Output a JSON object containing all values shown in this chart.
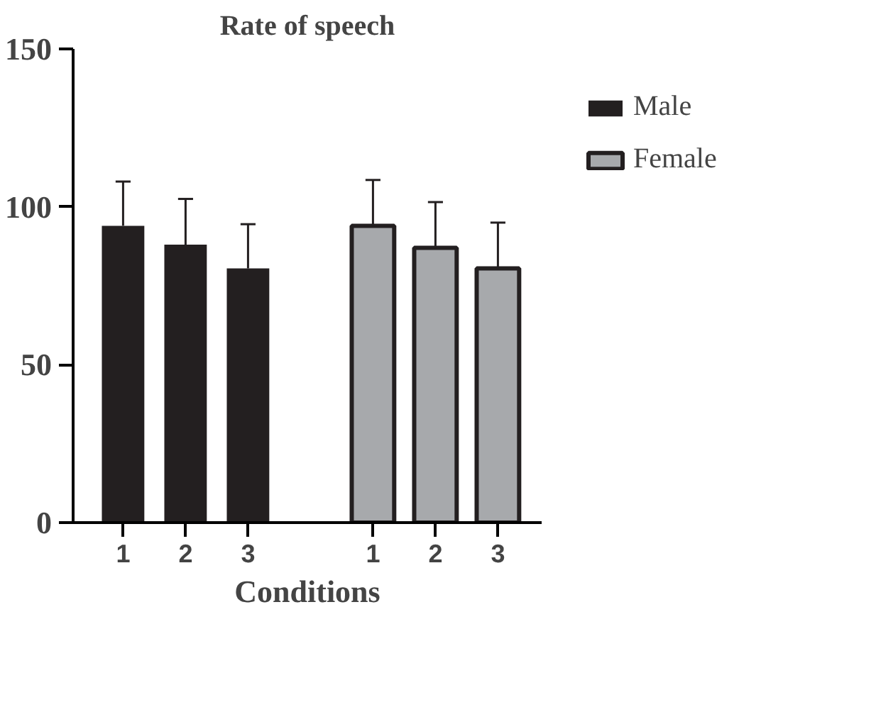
{
  "chart_data": {
    "type": "bar",
    "title": "Rate of speech",
    "xlabel": "Conditions",
    "categories": [
      "1",
      "2",
      "3",
      null,
      "1",
      "2",
      "3"
    ],
    "series": [
      {
        "name": "Male",
        "color": "#231f20",
        "values": [
          94,
          88,
          80.5,
          null,
          null,
          null,
          null
        ],
        "errors": [
          [
            94,
            108
          ],
          [
            88,
            102.5
          ],
          [
            80.5,
            94.5
          ],
          null,
          null,
          null,
          null
        ]
      },
      {
        "name": "Female",
        "color": "#a7a9ac",
        "values": [
          null,
          null,
          null,
          null,
          94,
          87,
          80.5
        ],
        "errors": [
          null,
          null,
          null,
          null,
          [
            94,
            108.5
          ],
          [
            87,
            101.5
          ],
          [
            80.5,
            95
          ]
        ]
      }
    ],
    "ylim": [
      0,
      150
    ],
    "yticks": [
      0,
      50,
      100,
      150
    ],
    "grid": false,
    "legend": "right"
  }
}
